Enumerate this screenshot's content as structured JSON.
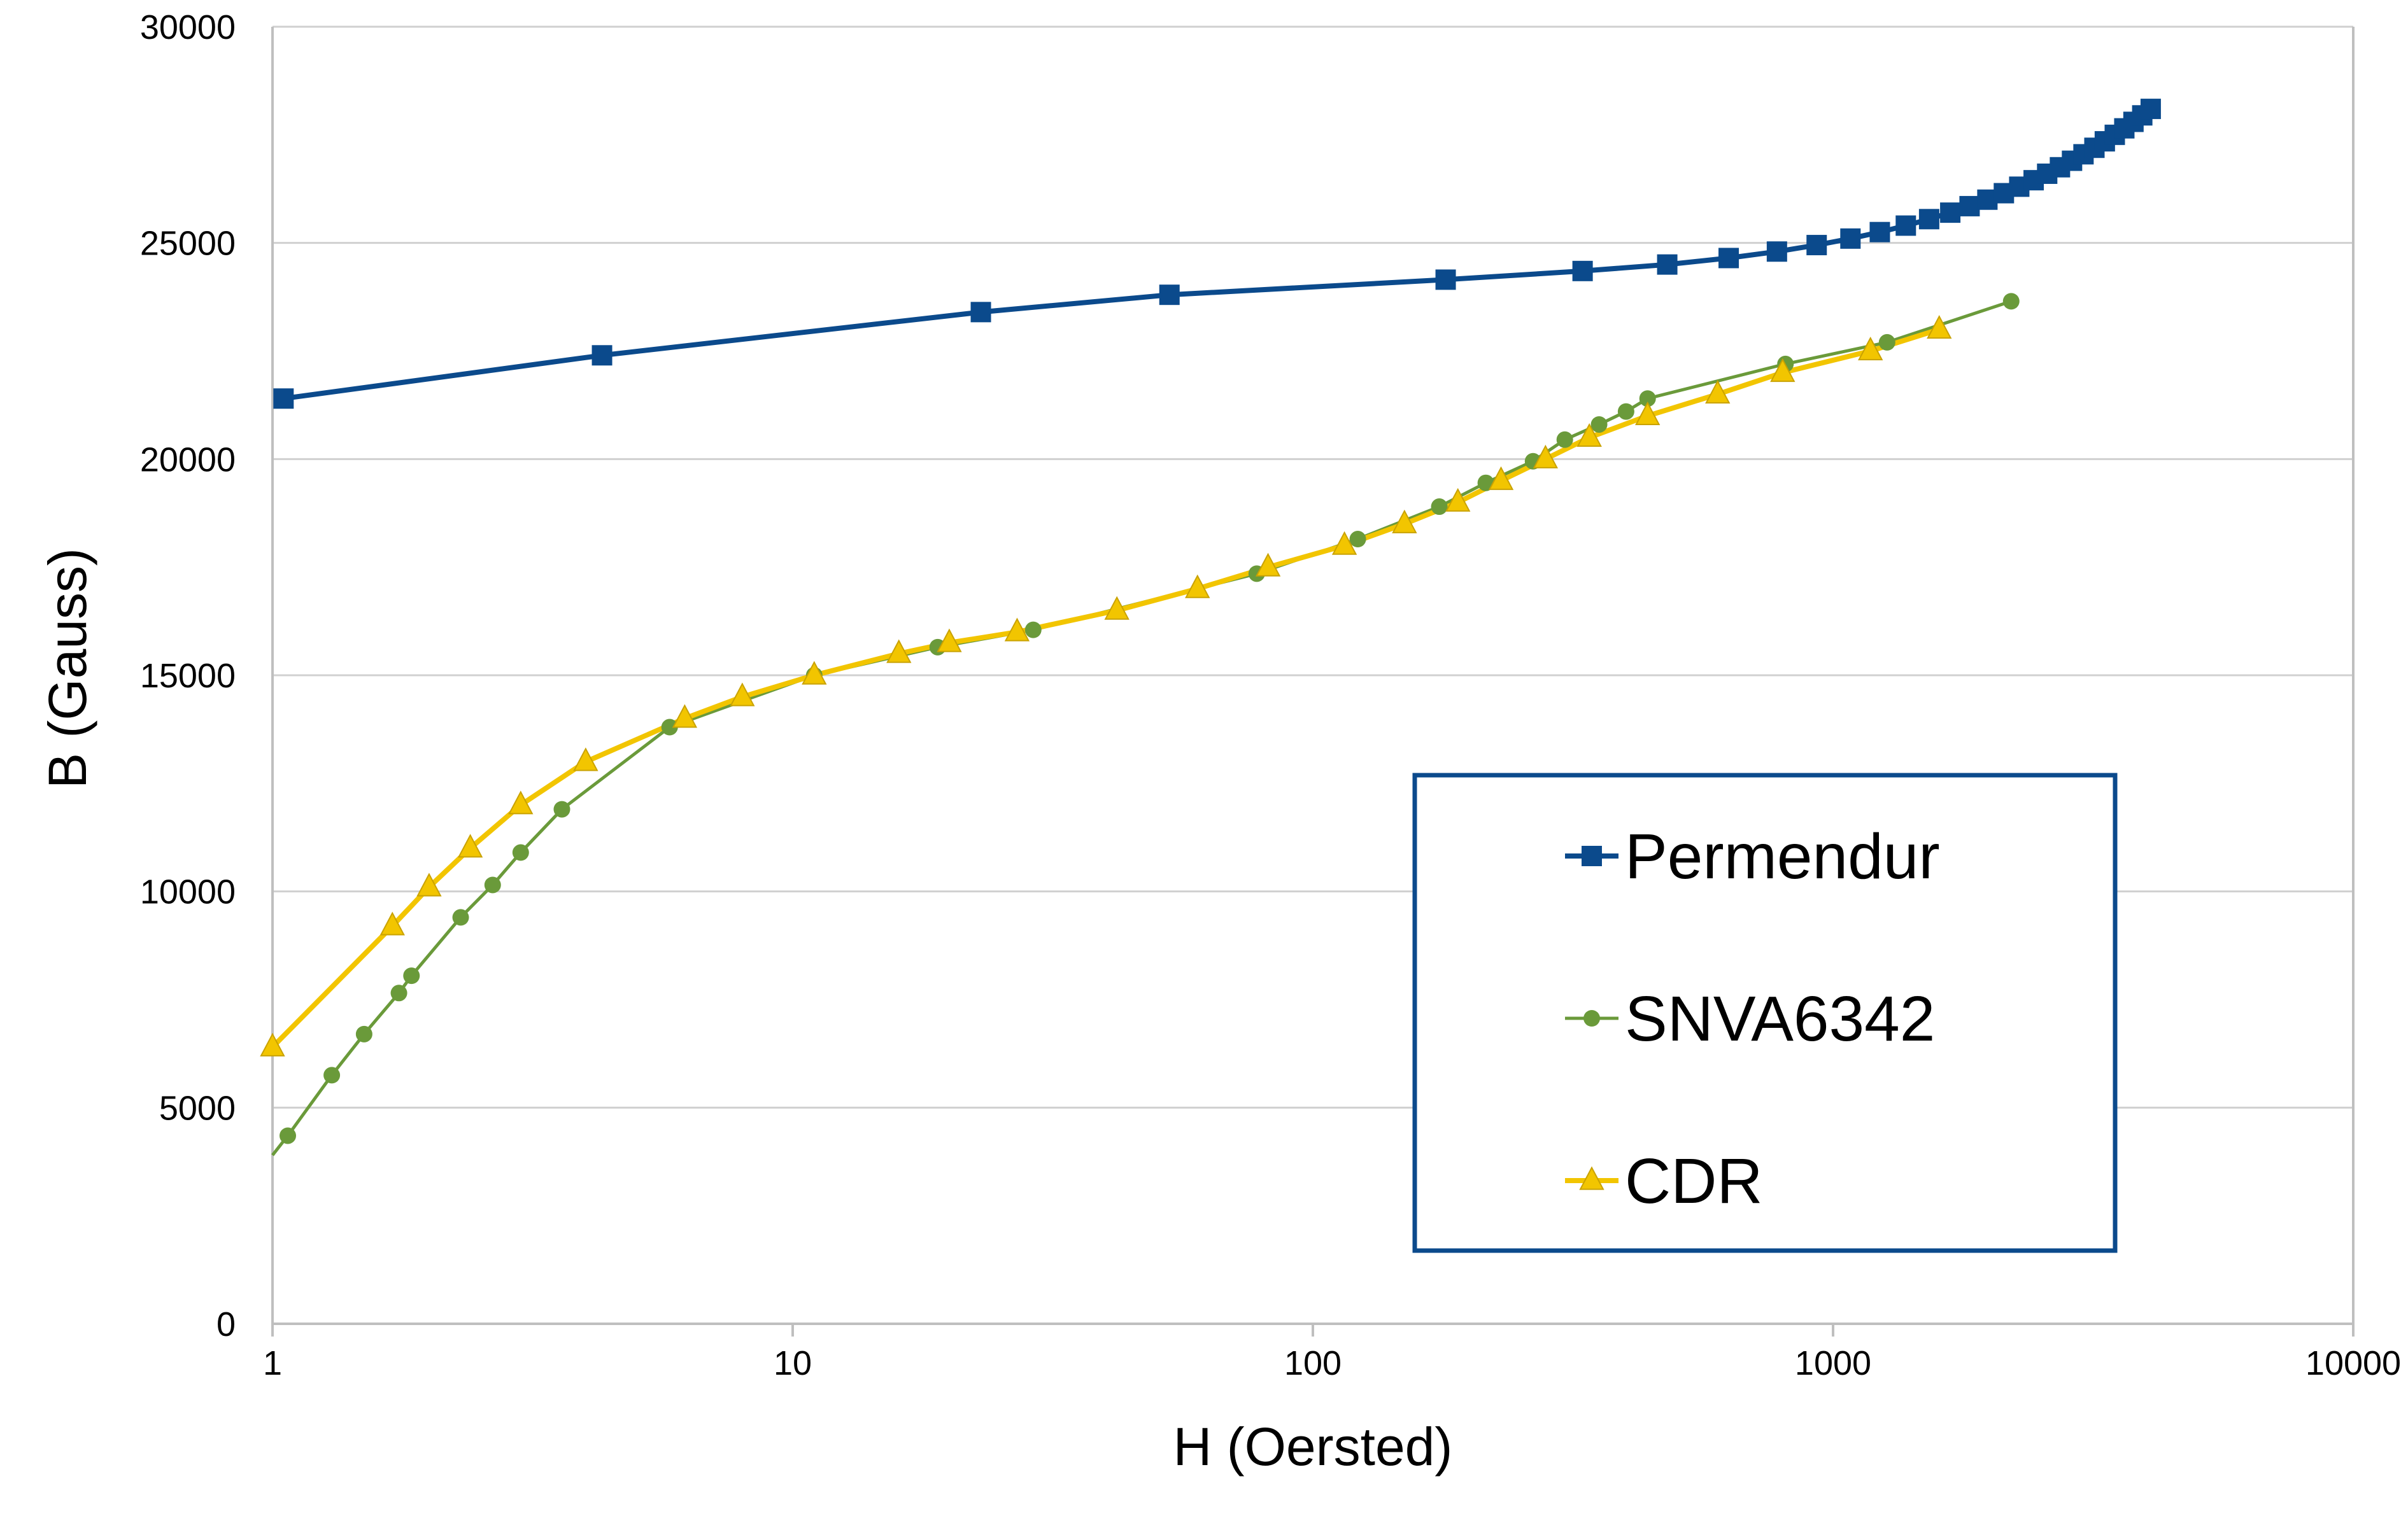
{
  "chart_data": {
    "type": "line",
    "title": "",
    "xlabel": "H (Oersted)",
    "ylabel": "B (Gauss)",
    "xscale": "log",
    "xlim": [
      1,
      10000
    ],
    "ylim": [
      0,
      30000
    ],
    "x_ticks": [
      1,
      10,
      100,
      1000,
      10000
    ],
    "x_tick_labels": [
      "1",
      "10",
      "100",
      "1000",
      "10000"
    ],
    "y_ticks": [
      0,
      5000,
      10000,
      15000,
      20000,
      25000,
      30000
    ],
    "y_tick_labels": [
      "0",
      "5000",
      "10000",
      "15000",
      "20000",
      "25000",
      "30000"
    ],
    "grid": "horizontal",
    "legend_position": "lower-right",
    "series": [
      {
        "name": "Permendur",
        "color": "#0b4a8c",
        "marker": "square",
        "x": [
          1.05,
          4.3,
          23,
          53,
          180,
          330,
          480,
          630,
          780,
          930,
          1080,
          1230,
          1380,
          1530,
          1680,
          1830,
          1980,
          2130,
          2280,
          2430,
          2580,
          2730,
          2880,
          3030,
          3180,
          3330,
          3480,
          3630,
          3780,
          3930,
          4080
        ],
        "y": [
          21400,
          22400,
          23400,
          23800,
          24150,
          24350,
          24500,
          24650,
          24800,
          24950,
          25100,
          25250,
          25400,
          25550,
          25700,
          25850,
          26000,
          26150,
          26300,
          26450,
          26600,
          26750,
          26900,
          27050,
          27200,
          27350,
          27500,
          27650,
          27800,
          27950,
          28100
        ]
      },
      {
        "name": "SNVA6342",
        "color": "#6a9a3a",
        "marker": "circle",
        "x": [
          1.0,
          1.07,
          1.3,
          1.5,
          1.75,
          1.85,
          2.3,
          2.65,
          3.0,
          3.6,
          5.8,
          11,
          19,
          29,
          78,
          122,
          175,
          215,
          265,
          305,
          355,
          400,
          440,
          810,
          1270,
          2200
        ],
        "y": [
          3900,
          4350,
          5750,
          6700,
          7650,
          8050,
          9400,
          10150,
          10900,
          11900,
          13800,
          15000,
          15650,
          16050,
          17350,
          18150,
          18900,
          19450,
          19950,
          20450,
          20800,
          21100,
          21400,
          22200,
          22700,
          23650
        ]
      },
      {
        "name": "CDR",
        "color": "#f2c500",
        "marker": "triangle",
        "x": [
          1.0,
          1.7,
          2.0,
          2.4,
          3.0,
          4.0,
          6.2,
          8.0,
          11,
          16,
          20,
          27,
          42,
          60,
          82,
          115,
          150,
          190,
          230,
          280,
          340,
          440,
          600,
          800,
          1180,
          1600
        ],
        "y": [
          6400,
          9200,
          10100,
          11000,
          12000,
          13000,
          14000,
          14500,
          15000,
          15500,
          15750,
          16000,
          16500,
          17000,
          17500,
          18000,
          18500,
          19000,
          19500,
          20000,
          20500,
          21000,
          21500,
          22000,
          22500,
          23000
        ]
      }
    ]
  },
  "legend": {
    "items": [
      "Permendur",
      "SNVA6342",
      "CDR"
    ]
  },
  "colors": {
    "permendur": "#0b4a8c",
    "snva": "#6a9a3a",
    "cdr": "#f2c500",
    "grid": "#d0d0d0",
    "legend_border": "#0b4a8c"
  }
}
